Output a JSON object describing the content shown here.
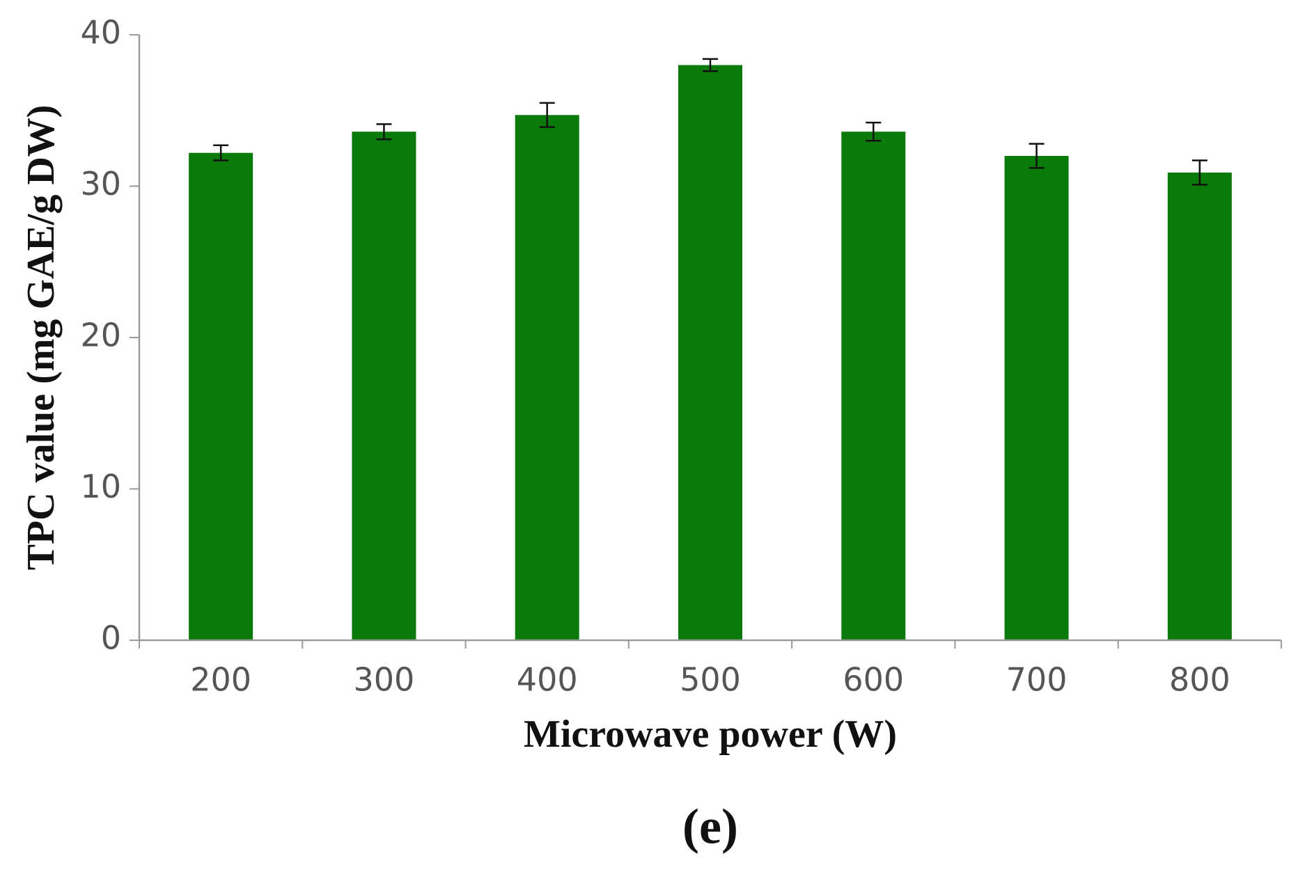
{
  "chart_data": {
    "type": "bar",
    "categories": [
      "200",
      "300",
      "400",
      "500",
      "600",
      "700",
      "800"
    ],
    "values": [
      32.2,
      33.6,
      34.7,
      38.0,
      33.6,
      32.0,
      30.9
    ],
    "error": [
      0.5,
      0.5,
      0.8,
      0.4,
      0.6,
      0.8,
      0.8
    ],
    "xlabel": "Microwave power (W)",
    "ylabel": "TPC value (mg GAE/g DW)",
    "ylim": [
      0,
      40
    ],
    "yticks": [
      0,
      10,
      20,
      30,
      40
    ],
    "grid": false,
    "legend": "none",
    "bar_color": "#0a7a0a",
    "axis_color": "#9a9a9a",
    "panel_label": "(e)"
  }
}
